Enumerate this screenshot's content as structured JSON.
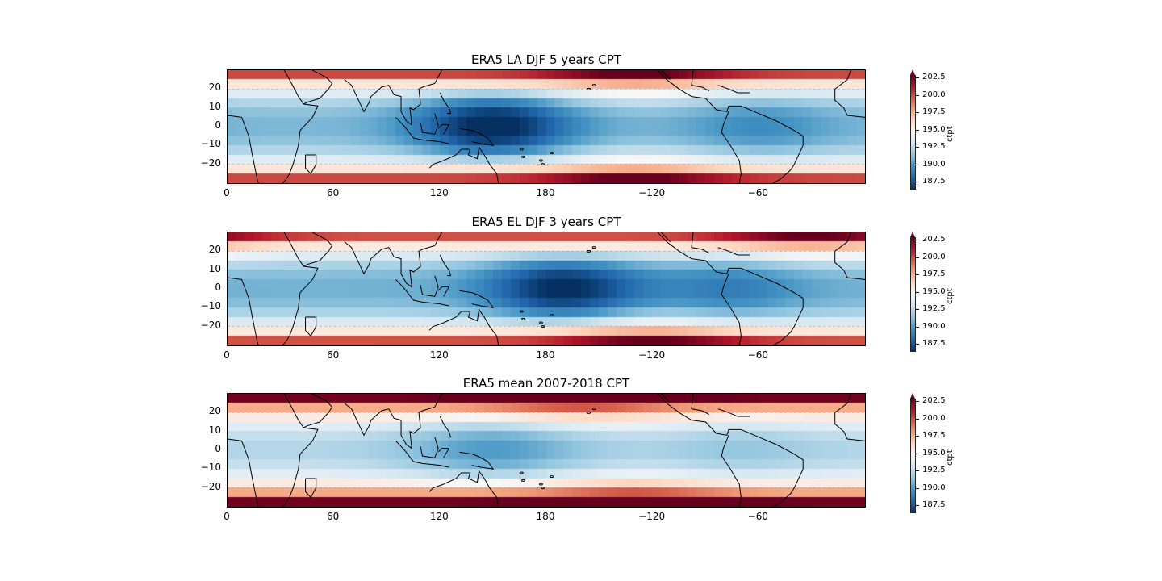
{
  "chart_data": [
    {
      "type": "heatmap",
      "title": "ERA5 LA DJF 5 years CPT",
      "xlabel": "",
      "ylabel": "",
      "xticks": [
        "0",
        "60",
        "120",
        "180",
        "−120",
        "−60"
      ],
      "yticks": [
        "20",
        "10",
        "0",
        "−10",
        "−20"
      ],
      "colorbar": {
        "label": "ctpt",
        "ticks": [
          "202.5",
          "200.0",
          "197.5",
          "195.0",
          "192.5",
          "190.0",
          "187.5"
        ],
        "range": [
          186.5,
          203
        ],
        "cmap": "RdBu_r",
        "extend": "max"
      },
      "x_range": [
        0,
        360
      ],
      "y_range": [
        -30,
        30
      ],
      "field_model": {
        "eq_base": 191.0,
        "min_center_lon": 150,
        "min_depth": 5.0,
        "min_width": 45,
        "east_center_lon": 300,
        "east_depth": 1.5,
        "east_width": 40,
        "band_amp": 9.0,
        "nh_warm_lon": 230,
        "sh_warm_lon": 230,
        "pole_warm": 3
      }
    },
    {
      "type": "heatmap",
      "title": "ERA5 EL DJF 3 years CPT",
      "xlabel": "",
      "ylabel": "",
      "xticks": [
        "0",
        "60",
        "120",
        "180",
        "−120",
        "−60"
      ],
      "yticks": [
        "20",
        "10",
        "0",
        "−10",
        "−20"
      ],
      "colorbar": {
        "label": "ctpt",
        "ticks": [
          "202.5",
          "200.0",
          "197.5",
          "195.0",
          "192.5",
          "190.0",
          "187.5"
        ],
        "range": [
          186.5,
          203
        ],
        "cmap": "RdBu_r",
        "extend": "max"
      },
      "x_range": [
        0,
        360
      ],
      "y_range": [
        -30,
        30
      ],
      "field_model": {
        "eq_base": 190.8,
        "min_center_lon": 190,
        "min_depth": 4.5,
        "min_width": 45,
        "east_center_lon": 285,
        "east_depth": 1.8,
        "east_width": 40,
        "band_amp": 9.0,
        "nh_warm_lon": 330,
        "sh_warm_lon": 240,
        "pole_warm": 3
      }
    },
    {
      "type": "heatmap",
      "title": "ERA5 mean 2007-2018 CPT",
      "xlabel": "",
      "ylabel": "",
      "xticks": [
        "0",
        "60",
        "120",
        "180",
        "−120",
        "−60"
      ],
      "yticks": [
        "20",
        "10",
        "0",
        "−10",
        "−20"
      ],
      "colorbar": {
        "label": "ctpt",
        "ticks": [
          "202.5",
          "200.0",
          "197.5",
          "195.0",
          "192.5",
          "190.0",
          "187.5"
        ],
        "range": [
          186.5,
          203
        ],
        "cmap": "RdBu_r",
        "extend": "max"
      },
      "x_range": [
        0,
        360
      ],
      "y_range": [
        -30,
        30
      ],
      "field_model": {
        "eq_base": 192.3,
        "min_center_lon": 150,
        "min_depth": 2.3,
        "min_width": 50,
        "east_center_lon": 290,
        "east_depth": 0.8,
        "east_width": 40,
        "band_amp": 10.5,
        "nh_warm_lon": 200,
        "sh_warm_lon": 230,
        "pole_warm": 3
      }
    }
  ]
}
